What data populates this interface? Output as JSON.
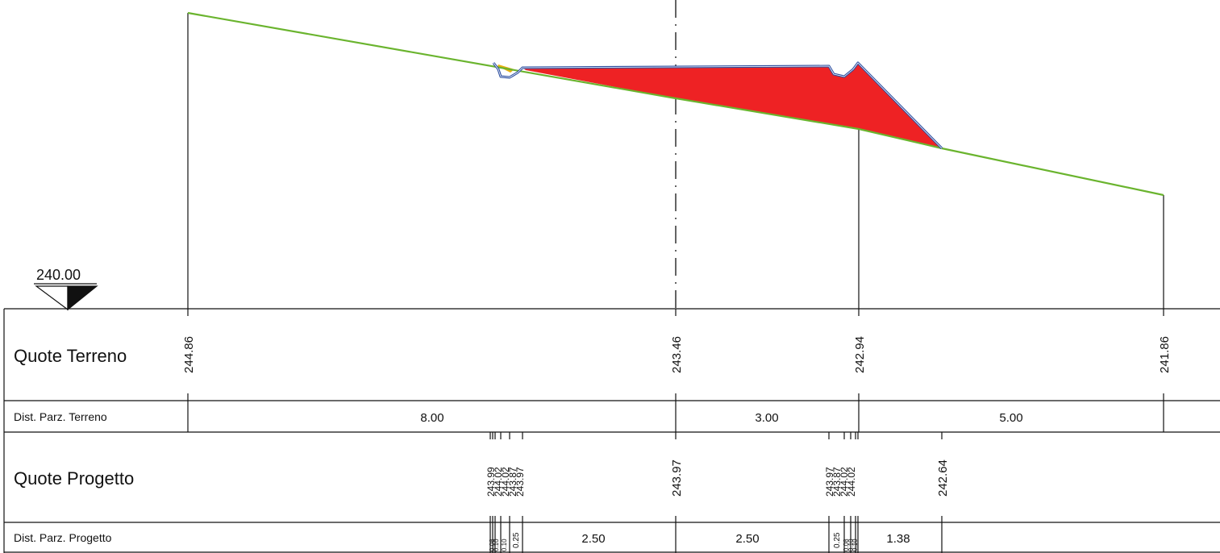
{
  "datum": {
    "label": "240.00",
    "value": 240.0
  },
  "rows": {
    "quote_terreno": "Quote Terreno",
    "dist_parz_terreno": "Dist. Parz. Terreno",
    "quote_progetto": "Quote Progetto",
    "dist_parz_progetto": "Dist. Parz. Progetto"
  },
  "terrain_elevations": [
    {
      "offset": -8.0,
      "label": "244.86"
    },
    {
      "offset": 0.0,
      "label": "243.46"
    },
    {
      "offset": 3.0,
      "label": "242.94"
    },
    {
      "offset": 8.0,
      "label": "241.86"
    }
  ],
  "terrain_distances": [
    "8.00",
    "3.00",
    "5.00"
  ],
  "project_elevations": [
    "243.99",
    "244.02",
    "244.02",
    "243.87",
    "243.97",
    "243.97",
    "243.97",
    "243.87",
    "244.02",
    "244.02",
    "242.64"
  ],
  "project_distances": {
    "small": [
      "0.25",
      "0.25"
    ],
    "tiny": [
      "0.08",
      "0.10",
      "0.10",
      "0.08",
      "0.10",
      "0.10"
    ],
    "main": [
      "2.50",
      "2.50",
      "1.38"
    ]
  },
  "colors": {
    "terrain_line": "#6ab42e",
    "project_line": "#2c4ea0",
    "fill_embankment": "#ee2224",
    "fill_cut": "#e8b00c",
    "grid": "#111111"
  }
}
